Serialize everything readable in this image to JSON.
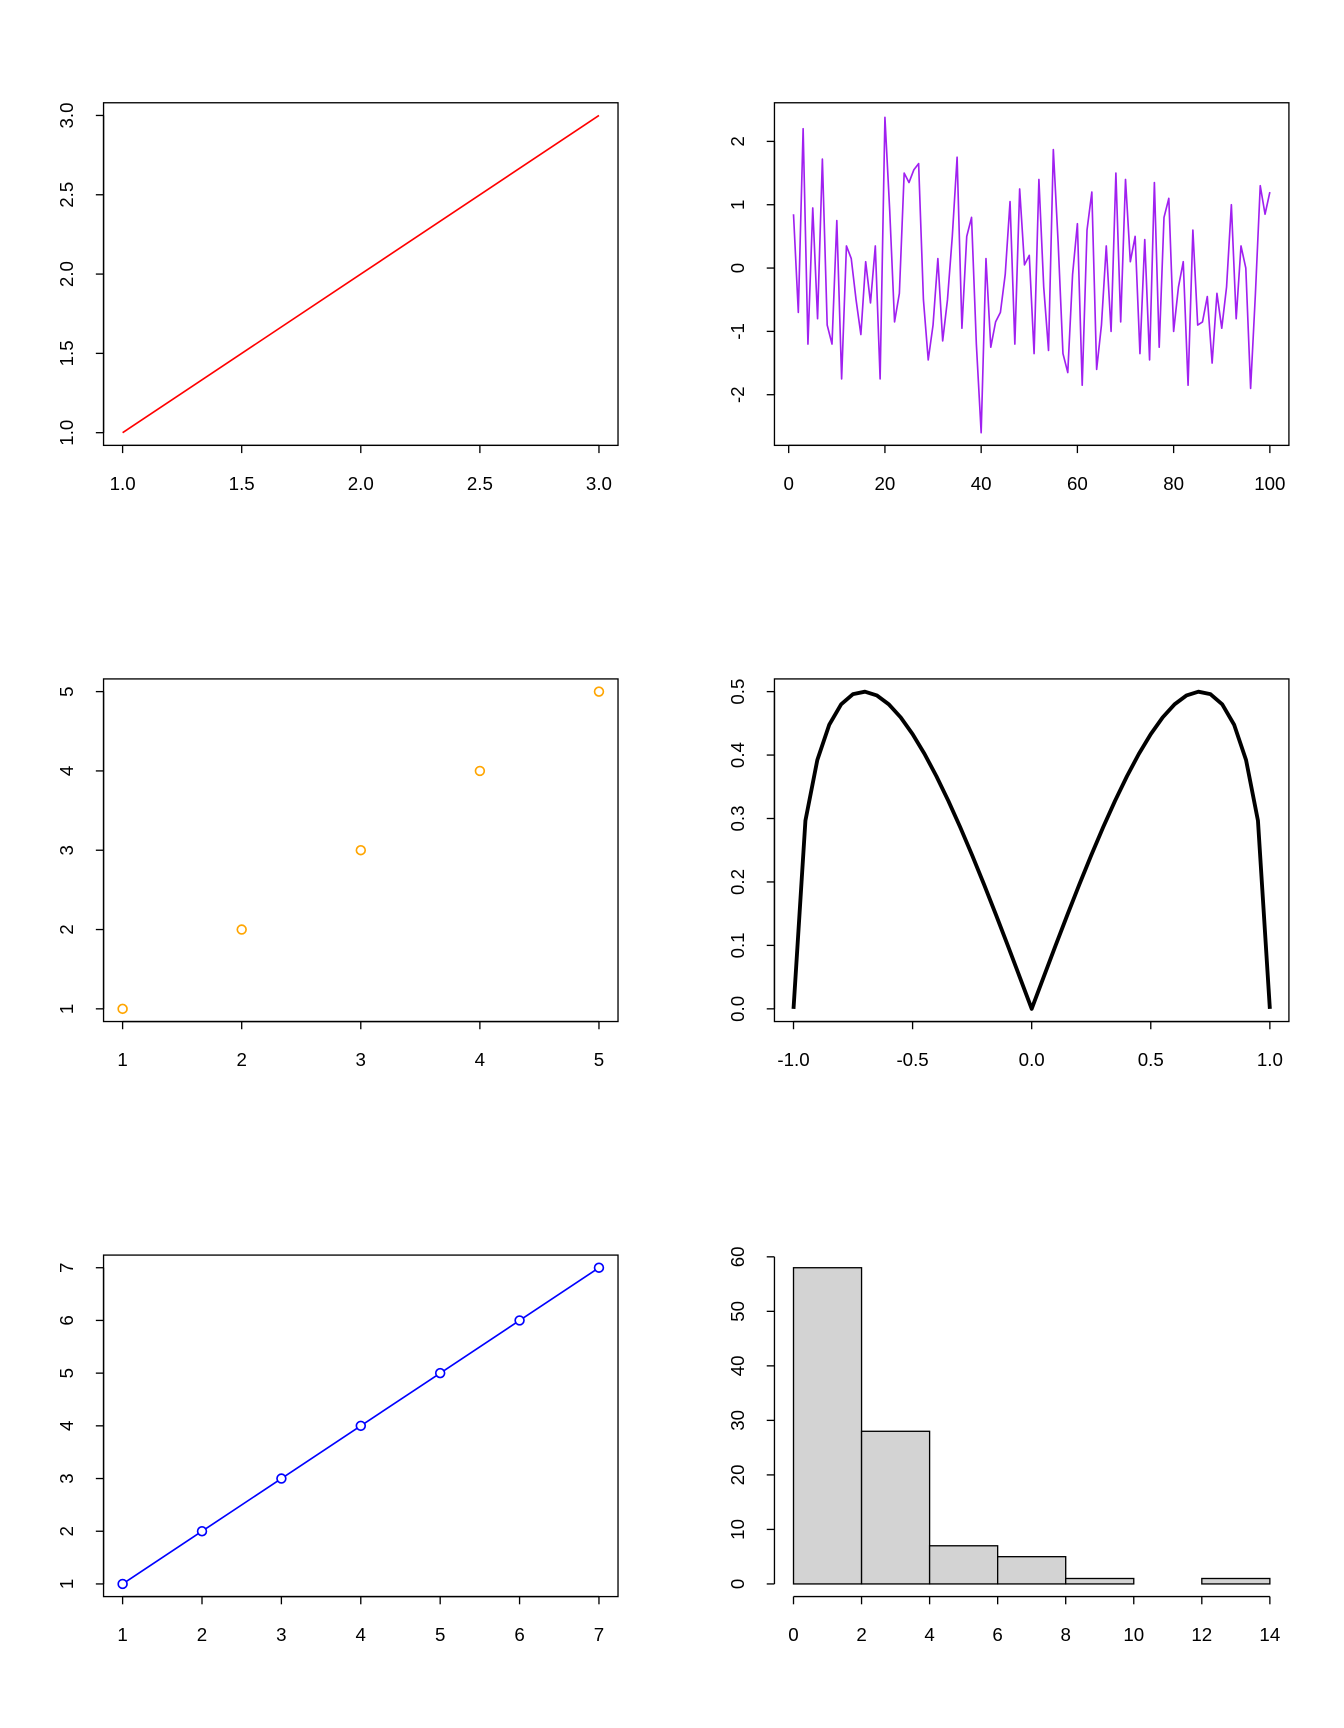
{
  "chart_data": [
    {
      "type": "line",
      "color": "#ff0000",
      "box": true,
      "line_width": 1.5,
      "x": [
        1,
        2,
        3
      ],
      "values": [
        1,
        2,
        3
      ],
      "xlim": [
        0.92,
        3.08
      ],
      "ylim": [
        0.92,
        3.08
      ],
      "xticks": [
        {
          "value": 1,
          "label": "1.0"
        },
        1.5,
        {
          "value": 2,
          "label": "2.0"
        },
        2.5,
        {
          "value": 3,
          "label": "3.0"
        }
      ],
      "yticks": [
        {
          "value": 1,
          "label": "1.0"
        },
        1.5,
        {
          "value": 2,
          "label": "2.0"
        },
        2.5,
        {
          "value": 3,
          "label": "3.0"
        }
      ]
    },
    {
      "type": "line",
      "color": "#a020f0",
      "box": true,
      "line_width": 1.5,
      "x": [
        1,
        2,
        3,
        4,
        5,
        6,
        7,
        8,
        9,
        10,
        11,
        12,
        13,
        14,
        15,
        16,
        17,
        18,
        19,
        20,
        21,
        22,
        23,
        24,
        25,
        26,
        27,
        28,
        29,
        30,
        31,
        32,
        33,
        34,
        35,
        36,
        37,
        38,
        39,
        40,
        41,
        42,
        43,
        44,
        45,
        46,
        47,
        48,
        49,
        50,
        51,
        52,
        53,
        54,
        55,
        56,
        57,
        58,
        59,
        60,
        61,
        62,
        63,
        64,
        65,
        66,
        67,
        68,
        69,
        70,
        71,
        72,
        73,
        74,
        75,
        76,
        77,
        78,
        79,
        80,
        81,
        82,
        83,
        84,
        85,
        86,
        87,
        88,
        89,
        90,
        91,
        92,
        93,
        94,
        95,
        96,
        97,
        98,
        99,
        100
      ],
      "values": [
        0.85,
        -0.7,
        2.2,
        -1.2,
        0.95,
        -0.8,
        1.72,
        -0.9,
        -1.2,
        0.75,
        -1.75,
        0.35,
        0.15,
        -0.5,
        -1.05,
        0.1,
        -0.55,
        0.35,
        -1.75,
        2.38,
        0.9,
        -0.85,
        -0.4,
        1.5,
        1.35,
        1.55,
        1.65,
        -0.5,
        -1.45,
        -0.9,
        0.15,
        -1.15,
        -0.5,
        0.5,
        1.75,
        -0.95,
        0.5,
        0.8,
        -1.2,
        -2.6,
        0.15,
        -1.25,
        -0.85,
        -0.7,
        -0.1,
        1.05,
        -1.2,
        1.25,
        0.05,
        0.2,
        -1.35,
        1.4,
        -0.3,
        -1.3,
        1.87,
        0.4,
        -1.35,
        -1.65,
        -0.1,
        0.7,
        -1.85,
        0.6,
        1.2,
        -1.6,
        -0.9,
        0.35,
        -1.0,
        1.5,
        -0.85,
        1.4,
        0.1,
        0.5,
        -1.35,
        0.45,
        -1.45,
        1.35,
        -1.25,
        0.8,
        1.1,
        -1.0,
        -0.3,
        0.1,
        -1.85,
        0.6,
        -0.9,
        -0.85,
        -0.45,
        -1.5,
        -0.4,
        -0.95,
        -0.3,
        1.0,
        -0.8,
        0.35,
        0.0,
        -1.9,
        -0.4,
        1.3,
        0.85,
        1.2
      ],
      "xlim": [
        -2.96,
        103.96
      ],
      "ylim": [
        -2.8,
        2.61
      ],
      "xticks": [
        0,
        20,
        40,
        60,
        80,
        100
      ],
      "yticks": [
        -2,
        -1,
        0,
        1,
        2
      ]
    },
    {
      "type": "scatter",
      "color": "#ffa500",
      "box": true,
      "x": [
        1,
        2,
        3,
        4,
        5
      ],
      "values": [
        1,
        2,
        3,
        4,
        5
      ],
      "xlim": [
        0.84,
        5.16
      ],
      "ylim": [
        0.84,
        5.16
      ],
      "xticks": [
        1,
        2,
        3,
        4,
        5
      ],
      "yticks": [
        1,
        2,
        3,
        4,
        5
      ]
    },
    {
      "type": "line",
      "color": "#000000",
      "box": true,
      "line_width": 3.5,
      "x": [
        -1,
        -0.95,
        -0.9,
        -0.85,
        -0.8,
        -0.75,
        -0.7,
        -0.65,
        -0.6,
        -0.55,
        -0.5,
        -0.45,
        -0.4,
        -0.35,
        -0.3,
        -0.25,
        -0.2,
        -0.15,
        -0.1,
        -0.05,
        0,
        0.05,
        0.1,
        0.15,
        0.2,
        0.25,
        0.3,
        0.35,
        0.4,
        0.45,
        0.5,
        0.55,
        0.6,
        0.65,
        0.7,
        0.75,
        0.8,
        0.85,
        0.9,
        0.95,
        1
      ],
      "values": [
        0,
        0.2966,
        0.3923,
        0.4478,
        0.48,
        0.4961,
        0.4999,
        0.494,
        0.48,
        0.4594,
        0.433,
        0.4019,
        0.3666,
        0.3279,
        0.2862,
        0.2421,
        0.196,
        0.1483,
        0.0995,
        0.0499,
        0,
        0.0499,
        0.0995,
        0.1483,
        0.196,
        0.2421,
        0.2862,
        0.3279,
        0.3666,
        0.4019,
        0.433,
        0.4594,
        0.48,
        0.494,
        0.4999,
        0.4961,
        0.48,
        0.4478,
        0.3923,
        0.2966,
        0
      ],
      "xlim": [
        -1.08,
        1.08
      ],
      "ylim": [
        -0.02,
        0.52
      ],
      "xticks": [
        {
          "value": -1,
          "label": "-1.0"
        },
        -0.5,
        {
          "value": 0,
          "label": "0.0"
        },
        0.5,
        {
          "value": 1,
          "label": "1.0"
        }
      ],
      "yticks": [
        {
          "value": 0,
          "label": "0.0"
        },
        0.1,
        0.2,
        0.3,
        0.4,
        0.5
      ]
    },
    {
      "type": "line",
      "color": "#0000ff",
      "box": true,
      "markers": true,
      "line_width": 1.5,
      "x": [
        1,
        2,
        3,
        4,
        5,
        6,
        7
      ],
      "values": [
        1,
        2,
        3,
        4,
        5,
        6,
        7
      ],
      "xlim": [
        0.76,
        7.24
      ],
      "ylim": [
        0.76,
        7.24
      ],
      "xticks": [
        1,
        2,
        3,
        4,
        5,
        6,
        7
      ],
      "yticks": [
        1,
        2,
        3,
        4,
        5,
        6,
        7
      ]
    },
    {
      "type": "histogram",
      "color": "#d3d3d3",
      "box": false,
      "bins": [
        0,
        2,
        4,
        6,
        8,
        10,
        12,
        14
      ],
      "values": [
        58,
        28,
        7,
        5,
        1,
        0,
        1
      ],
      "xlim": [
        -0.56,
        14.56
      ],
      "ylim": [
        -2.32,
        60.32
      ],
      "xticks": [
        0,
        2,
        4,
        6,
        8,
        10,
        12,
        14
      ],
      "yticks": [
        0,
        10,
        20,
        30,
        40,
        50,
        60
      ]
    }
  ]
}
